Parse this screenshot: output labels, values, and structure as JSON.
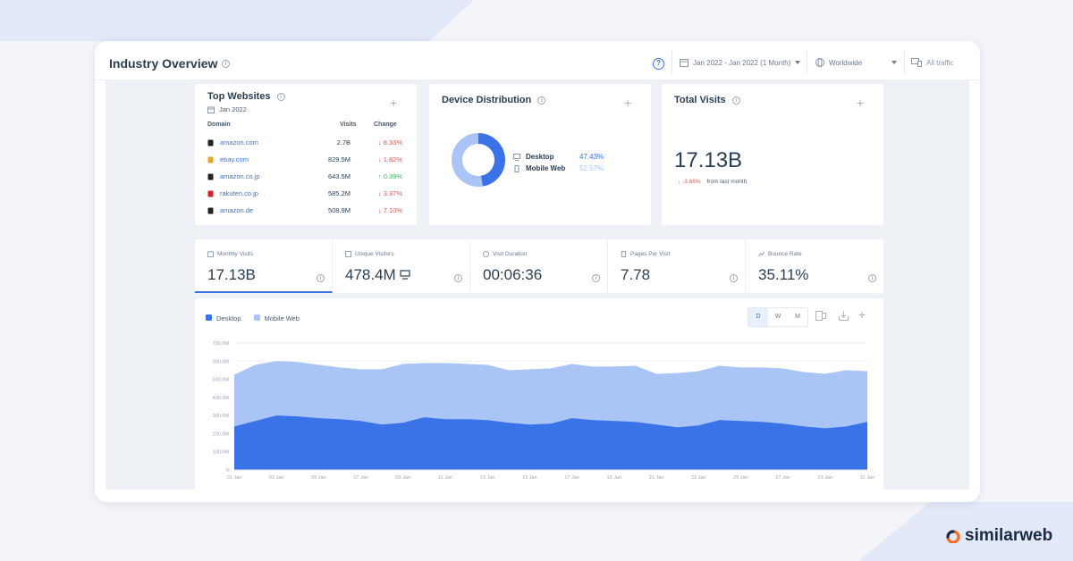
{
  "header": {
    "title": "Industry Overview",
    "date_range": "Jan 2022 - Jan 2022 (1 Month)",
    "geo": "Worldwide",
    "traffic": "All traffic"
  },
  "top_websites": {
    "title": "Top Websites",
    "date": "Jan 2022",
    "columns": {
      "domain": "Domain",
      "visits": "Visits",
      "change": "Change"
    },
    "rows": [
      {
        "domain": "amazon.com",
        "visits": "2.7B",
        "change": "8.33%",
        "direction": "down",
        "fav_color": "#222"
      },
      {
        "domain": "ebay.com",
        "visits": "829.5M",
        "change": "1.82%",
        "direction": "down",
        "fav_color": "#e5a82a"
      },
      {
        "domain": "amazon.co.jp",
        "visits": "643.5M",
        "change": "0.39%",
        "direction": "up",
        "fav_color": "#222"
      },
      {
        "domain": "rakuten.co.jp",
        "visits": "585.2M",
        "change": "3.37%",
        "direction": "down",
        "fav_color": "#d3232a"
      },
      {
        "domain": "amazon.de",
        "visits": "508.9M",
        "change": "7.10%",
        "direction": "down",
        "fav_color": "#222"
      }
    ]
  },
  "device_distribution": {
    "title": "Device Distribution",
    "items": [
      {
        "label": "Desktop",
        "value": "47.43%",
        "share": 47.43,
        "color": "#3a72e8"
      },
      {
        "label": "Mobile Web",
        "value": "52.57%",
        "share": 52.57,
        "color": "#a9c4f5"
      }
    ]
  },
  "total_visits": {
    "title": "Total Visits",
    "value": "17.13B",
    "change": "-3.66%",
    "change_suffix": "from last month"
  },
  "metrics": [
    {
      "label": "Monthly Visits",
      "value": "17.13B",
      "icon": "calendar-icon"
    },
    {
      "label": "Unique Visitors",
      "value": "478.4M",
      "icon": "users-icon"
    },
    {
      "label": "Visit Duration",
      "value": "00:06:36",
      "icon": "clock-icon"
    },
    {
      "label": "Pages Per Visit",
      "value": "7.78",
      "icon": "pages-icon"
    },
    {
      "label": "Bounce Rate",
      "value": "35.11%",
      "icon": "bounce-icon"
    }
  ],
  "chart_controls": {
    "granularity": [
      "D",
      "W",
      "M"
    ],
    "active": "D"
  },
  "chart_data": {
    "type": "area",
    "stacked": true,
    "x": [
      "01 Jan",
      "02 Jan",
      "03 Jan",
      "04 Jan",
      "05 Jan",
      "06 Jan",
      "07 Jan",
      "08 Jan",
      "09 Jan",
      "10 Jan",
      "11 Jan",
      "12 Jan",
      "13 Jan",
      "14 Jan",
      "15 Jan",
      "16 Jan",
      "17 Jan",
      "18 Jan",
      "19 Jan",
      "20 Jan",
      "21 Jan",
      "22 Jan",
      "23 Jan",
      "24 Jan",
      "25 Jan",
      "26 Jan",
      "27 Jan",
      "28 Jan",
      "29 Jan",
      "30 Jan",
      "31 Jan"
    ],
    "xticks": [
      "01 Jan",
      "03 Jan",
      "05 Jan",
      "07 Jan",
      "09 Jan",
      "11 Jan",
      "13 Jan",
      "15 Jan",
      "17 Jan",
      "19 Jan",
      "21 Jan",
      "23 Jan",
      "25 Jan",
      "27 Jan",
      "29 Jan",
      "31 Jan"
    ],
    "yticks": [
      "0",
      "100.0M",
      "200.0M",
      "300.0M",
      "400.0M",
      "500.0M",
      "600.0M",
      "700.0M"
    ],
    "ylim": [
      0,
      700
    ],
    "series": [
      {
        "name": "Desktop",
        "color": "#3a72e8",
        "values": [
          240,
          270,
          300,
          295,
          285,
          280,
          270,
          250,
          260,
          290,
          280,
          280,
          275,
          260,
          250,
          255,
          285,
          275,
          270,
          265,
          250,
          235,
          245,
          275,
          270,
          265,
          255,
          240,
          230,
          240,
          265
        ]
      },
      {
        "name": "Mobile Web",
        "color": "#a9c4f5",
        "values": [
          285,
          310,
          300,
          300,
          295,
          285,
          285,
          305,
          325,
          300,
          310,
          305,
          305,
          290,
          305,
          305,
          300,
          295,
          300,
          310,
          280,
          300,
          300,
          300,
          295,
          300,
          305,
          300,
          300,
          310,
          280
        ]
      }
    ]
  }
}
